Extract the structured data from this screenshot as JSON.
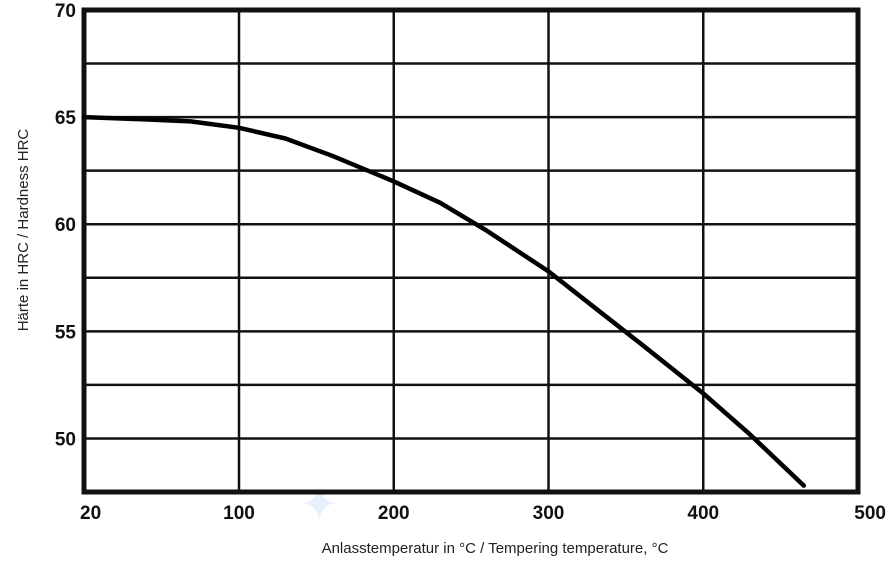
{
  "chart_data": {
    "type": "line",
    "title": "",
    "xlabel": "Anlasstemperatur in °C / Tempering temperature, °C",
    "ylabel": "Härte in HRC / Hardness HRC",
    "x_ticks": [
      20,
      100,
      200,
      300,
      400,
      500
    ],
    "y_ticks": [
      50,
      55,
      60,
      65,
      70
    ],
    "xlim": [
      20,
      500
    ],
    "ylim": [
      47.5,
      70
    ],
    "grid": true,
    "series": [
      {
        "x": [
          20,
          50,
          75,
          100,
          130,
          160,
          200,
          230,
          260,
          300,
          330,
          360,
          400,
          430,
          465
        ],
        "y": [
          65,
          64.9,
          64.8,
          64.5,
          64.0,
          63.2,
          62.0,
          61.0,
          59.7,
          57.8,
          56.1,
          54.4,
          52.1,
          50.2,
          47.8
        ]
      }
    ]
  }
}
